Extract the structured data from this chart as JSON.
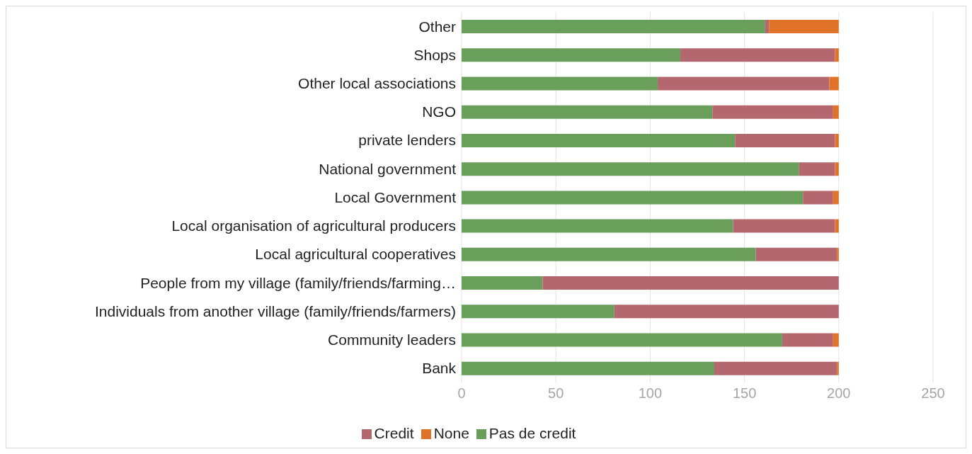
{
  "chart_data": {
    "type": "bar",
    "orientation": "horizontal",
    "stacked": true,
    "categories": [
      "Other",
      "Shops",
      "Other local associations",
      "NGO",
      "private lenders",
      "National government",
      "Local Government",
      "Local organisation of agricultural producers",
      "Local agricultural cooperatives",
      "People from my village (family/friends/farming…",
      "Individuals from another village (family/friends/farmers)",
      "Community leaders",
      "Bank"
    ],
    "series": [
      {
        "name": "Pas de credit",
        "color": "#6a9e5b",
        "values": [
          161,
          116,
          104,
          133,
          145,
          179,
          181,
          144,
          156,
          43,
          81,
          170,
          134
        ]
      },
      {
        "name": "Credit",
        "color": "#b5676f",
        "values": [
          2,
          82,
          91,
          64,
          53,
          19,
          16,
          54,
          43,
          157,
          119,
          27,
          65
        ]
      },
      {
        "name": "None",
        "color": "#e07328",
        "values": [
          37,
          2,
          5,
          3,
          2,
          2,
          3,
          2,
          1,
          0,
          0,
          3,
          1
        ]
      }
    ],
    "xlim": [
      0,
      250
    ],
    "xticks": [
      0,
      50,
      100,
      150,
      200,
      250
    ],
    "grid": "x",
    "legend": "bottom"
  }
}
